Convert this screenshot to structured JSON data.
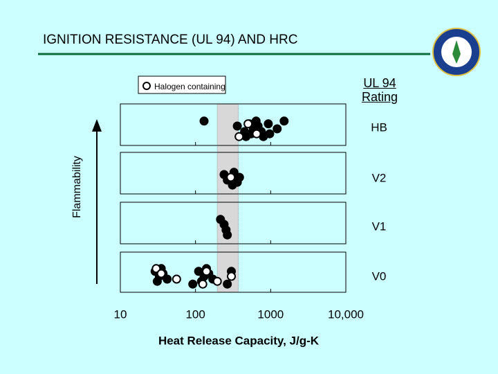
{
  "chart_data": {
    "type": "scatter",
    "title": "IGNITION RESISTANCE (UL 94) AND HRC",
    "xlabel": "Heat Release Capacity, J/g-K",
    "ylabel": "Flammability",
    "rating_title": "UL 94 Rating",
    "categories": [
      "HB",
      "V2",
      "V1",
      "V0"
    ],
    "xlim": [
      10,
      10000
    ],
    "xticks": [
      10,
      100,
      1000,
      {
        "value": 10000,
        "label": "10,000"
      }
    ],
    "log_x": true,
    "shaded_range": [
      195,
      370
    ],
    "series": [
      {
        "color": "#000000",
        "fill": true,
        "x": [
          130,
          360,
          450,
          470,
          520,
          550,
          590,
          640,
          680,
          750,
          800,
          930,
          970,
          1220,
          1510,
          240,
          265,
          310,
          325,
          360,
          385,
          215,
          240,
          255,
          265,
          29,
          31,
          33,
          35,
          37,
          42,
          92,
          110,
          120,
          130,
          140,
          150,
          170,
          265,
          300
        ],
        "rating": [
          "HB",
          "HB",
          "HB",
          "HB",
          "HB",
          "HB",
          "HB",
          "HB",
          "HB",
          "HB",
          "HB",
          "HB",
          "HB",
          "HB",
          "HB",
          "V2",
          "V2",
          "V2",
          "V2",
          "V2",
          "V2",
          "V1",
          "V1",
          "V1",
          "V1",
          "V0",
          "V0",
          "V0",
          "V0",
          "V0",
          "V0",
          "V0",
          "V0",
          "V0",
          "V0",
          "V0",
          "V0",
          "V0",
          "V0",
          "V0"
        ]
      },
      {
        "name": "Halogen containing",
        "color": "#000000",
        "fill": false,
        "x": [
          380,
          500,
          650,
          295,
          30,
          35,
          56,
          125,
          140,
          195,
          300
        ],
        "rating": [
          "HB",
          "HB",
          "HB",
          "V2",
          "V0",
          "V0",
          "V0",
          "V0",
          "V0",
          "V0",
          "V0"
        ]
      }
    ]
  }
}
